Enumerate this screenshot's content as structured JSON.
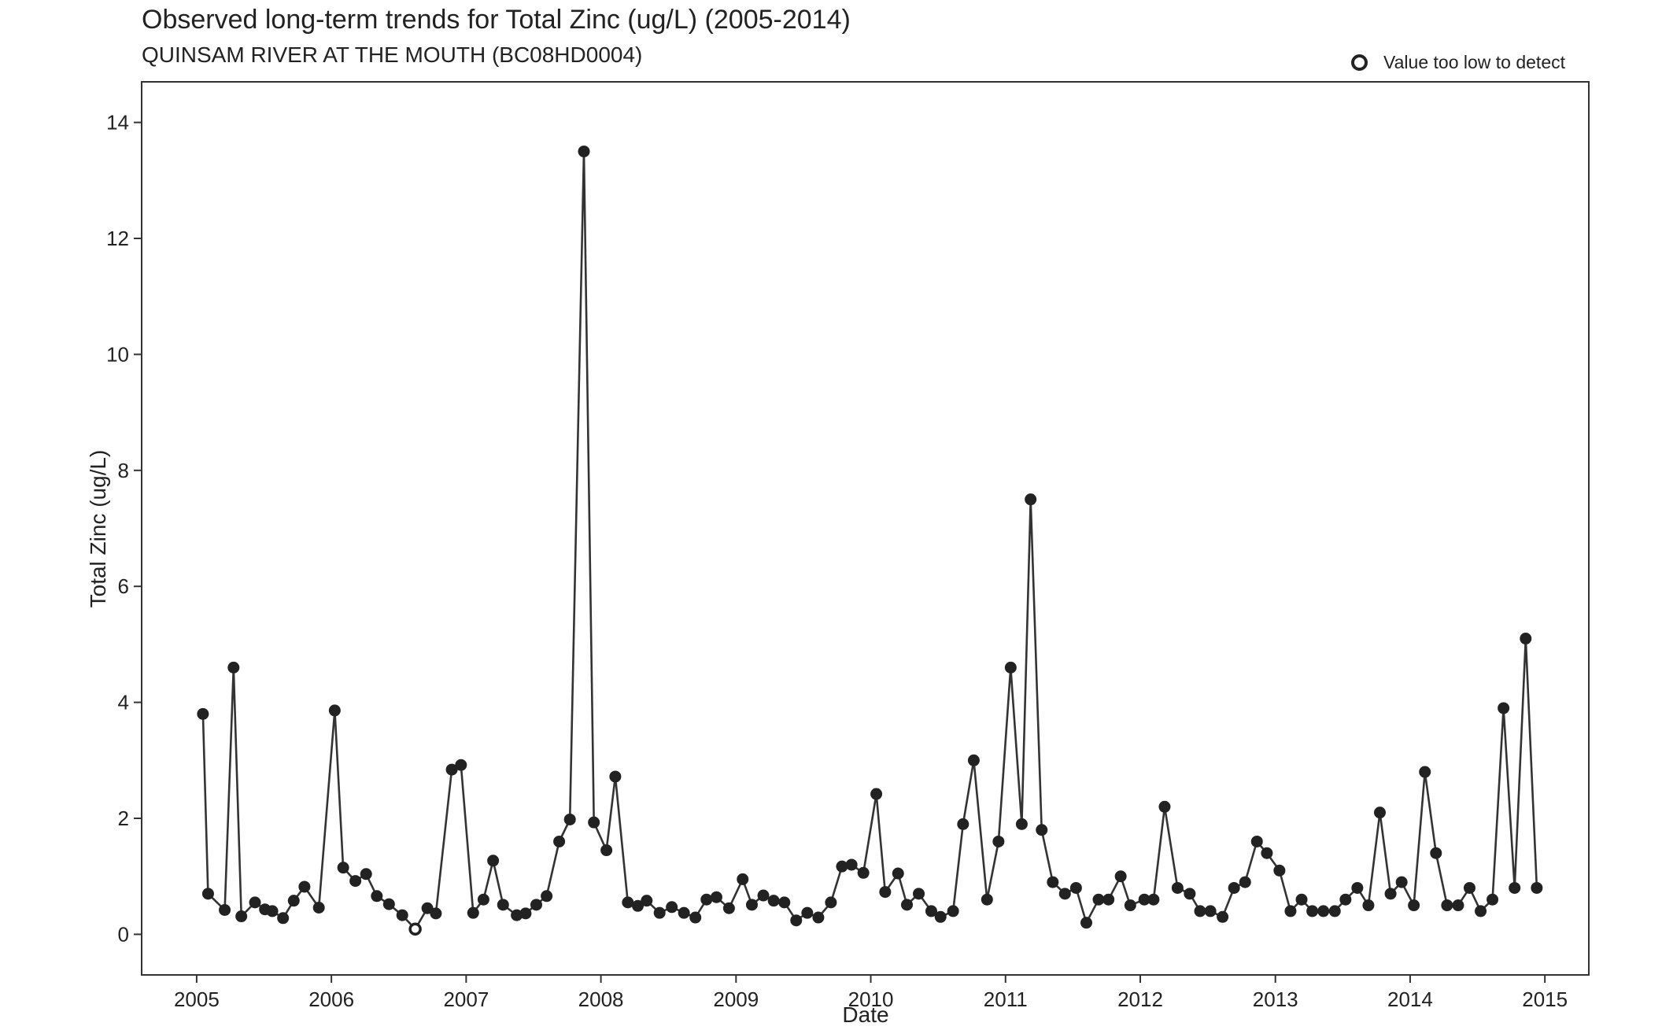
{
  "chart_data": {
    "type": "line",
    "title": "Observed long-term trends for Total Zinc (ug/L) (2005-2014)",
    "subtitle": "QUINSAM RIVER AT THE MOUTH (BC08HD0004)",
    "xlabel": "Date",
    "ylabel": "Total Zinc (ug/L)",
    "xlim": [
      "2004-08-05",
      "2015-04-30"
    ],
    "ylim": [
      -0.7,
      14.7
    ],
    "x_ticks": [
      "2005",
      "2006",
      "2007",
      "2008",
      "2009",
      "2010",
      "2011",
      "2012",
      "2013",
      "2014",
      "2015"
    ],
    "y_ticks": [
      0,
      2,
      4,
      6,
      8,
      10,
      12,
      14
    ],
    "grid": false,
    "legend": {
      "position": "top-right",
      "entries": [
        {
          "label": "Value too low to detect",
          "marker": "hollow-circle"
        }
      ]
    },
    "colors": {
      "line": "#333333",
      "point": "#222222"
    },
    "series": [
      {
        "x": [
          "2005-01-18",
          "2005-02-01",
          "2005-03-18",
          "2005-04-11",
          "2005-05-02",
          "2005-06-08",
          "2005-07-05",
          "2005-07-25",
          "2005-08-23",
          "2005-09-21",
          "2005-10-20",
          "2005-11-28",
          "2006-01-10",
          "2006-02-02",
          "2006-03-07",
          "2006-04-05",
          "2006-05-04",
          "2006-06-06",
          "2006-07-12",
          "2006-08-16",
          "2006-09-18",
          "2006-10-11",
          "2006-11-23",
          "2006-12-18",
          "2007-01-20",
          "2007-02-17",
          "2007-03-15",
          "2007-04-11",
          "2007-05-18",
          "2007-06-11",
          "2007-07-10",
          "2007-08-07",
          "2007-09-10",
          "2007-10-09",
          "2007-11-16",
          "2007-12-13",
          "2008-01-16",
          "2008-02-09",
          "2008-03-14",
          "2008-04-10",
          "2008-05-04",
          "2008-06-08",
          "2008-07-11",
          "2008-08-13",
          "2008-09-13",
          "2008-10-13",
          "2008-11-09",
          "2008-12-13",
          "2009-01-19",
          "2009-02-13",
          "2009-03-16",
          "2009-04-13",
          "2009-05-12",
          "2009-06-13",
          "2009-07-13",
          "2009-08-12",
          "2009-09-15",
          "2009-10-15",
          "2009-11-10",
          "2009-12-12",
          "2010-01-16",
          "2010-02-09",
          "2010-03-16",
          "2010-04-09",
          "2010-05-11",
          "2010-06-14",
          "2010-07-09",
          "2010-08-12",
          "2010-09-08",
          "2010-10-07",
          "2010-11-12",
          "2010-12-13",
          "2011-01-15",
          "2011-02-14",
          "2011-03-10",
          "2011-04-09",
          "2011-05-09",
          "2011-06-11",
          "2011-07-11",
          "2011-08-08",
          "2011-09-10",
          "2011-10-07",
          "2011-11-09",
          "2011-12-05",
          "2012-01-12",
          "2012-02-06",
          "2012-03-07",
          "2012-04-11",
          "2012-05-14",
          "2012-06-11",
          "2012-07-09",
          "2012-08-11",
          "2012-09-11",
          "2012-10-11",
          "2012-11-12",
          "2012-12-09",
          "2013-01-12",
          "2013-02-11",
          "2013-03-13",
          "2013-04-11",
          "2013-05-11",
          "2013-06-11",
          "2013-07-10",
          "2013-08-11",
          "2013-09-10",
          "2013-10-11",
          "2013-11-09",
          "2013-12-09",
          "2014-01-11",
          "2014-02-10",
          "2014-03-12",
          "2014-04-11",
          "2014-05-11",
          "2014-06-11",
          "2014-07-11",
          "2014-08-12",
          "2014-09-11",
          "2014-10-11",
          "2014-11-10",
          "2014-12-10"
        ],
        "y": [
          3.8,
          0.7,
          0.42,
          4.6,
          0.31,
          0.55,
          0.43,
          0.4,
          0.28,
          0.58,
          0.82,
          0.46,
          3.86,
          1.15,
          0.92,
          1.04,
          0.66,
          0.52,
          0.33,
          0.09,
          0.45,
          0.36,
          2.84,
          2.92,
          0.37,
          0.6,
          1.27,
          0.51,
          0.33,
          0.36,
          0.51,
          0.66,
          1.6,
          1.98,
          13.5,
          1.93,
          1.45,
          2.72,
          0.55,
          0.49,
          0.58,
          0.37,
          0.47,
          0.37,
          0.29,
          0.6,
          0.64,
          0.45,
          0.95,
          0.51,
          0.67,
          0.58,
          0.55,
          0.24,
          0.37,
          0.29,
          0.55,
          1.17,
          1.2,
          1.06,
          2.42,
          0.73,
          1.05,
          0.51,
          0.7,
          0.4,
          0.3,
          0.4,
          1.9,
          3.0,
          0.6,
          1.6,
          4.6,
          1.9,
          7.5,
          1.8,
          0.9,
          0.7,
          0.8,
          0.2,
          0.6,
          0.6,
          1.0,
          0.5,
          0.6,
          0.6,
          2.2,
          0.8,
          0.7,
          0.4,
          0.4,
          0.3,
          0.8,
          0.9,
          1.6,
          1.4,
          1.1,
          0.4,
          0.6,
          0.4,
          0.4,
          0.4,
          0.6,
          0.8,
          0.5,
          2.1,
          0.7,
          0.9,
          0.5,
          2.8,
          1.4,
          0.5,
          0.5,
          0.8,
          0.4,
          0.6,
          3.9,
          0.8,
          5.1,
          0.8
        ],
        "below_detection_index": [
          19
        ]
      }
    ]
  }
}
